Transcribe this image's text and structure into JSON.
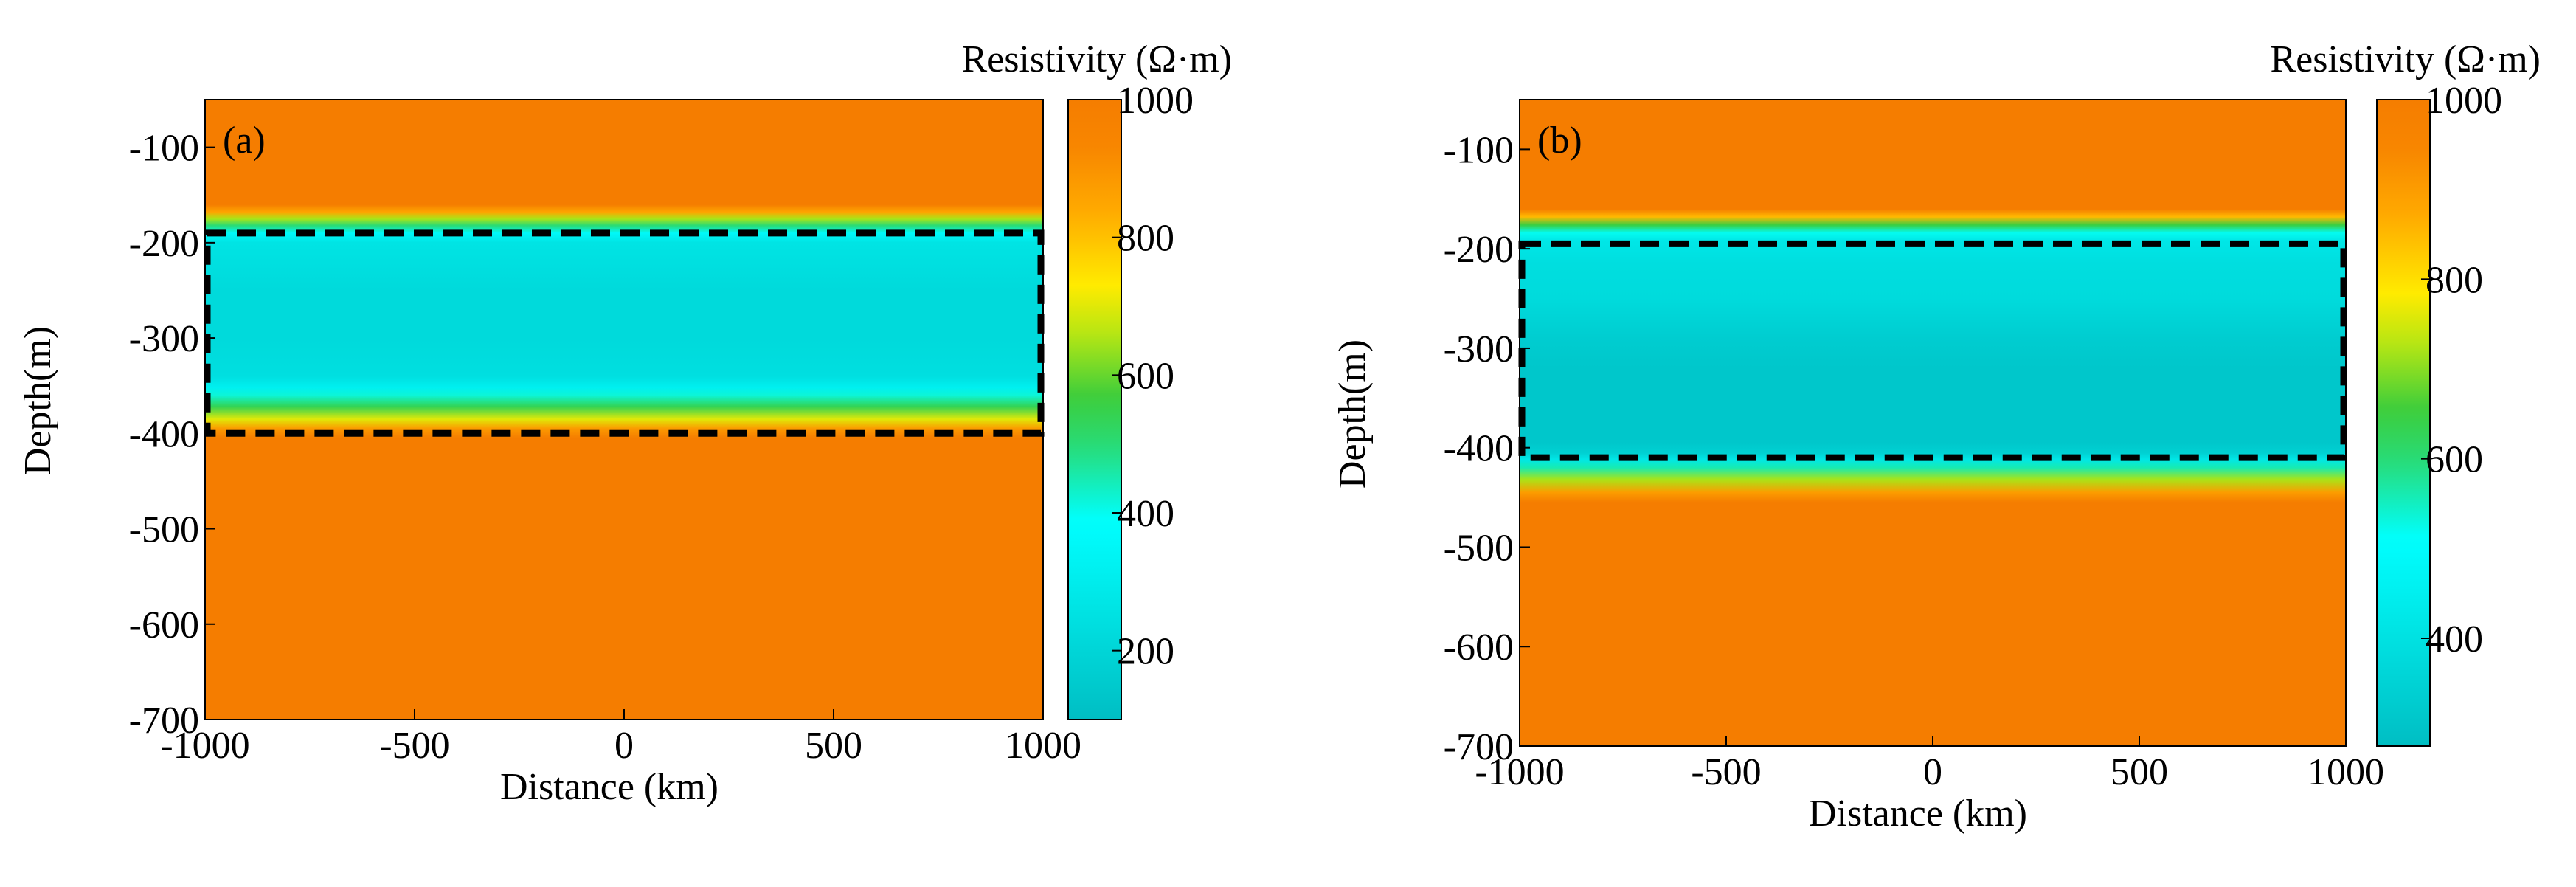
{
  "chart_data": [
    {
      "type": "heatmap",
      "panel_label": "(a)",
      "xlabel": "Distance (km)",
      "ylabel": "Depth(m)",
      "xlim": [
        -1000,
        1000
      ],
      "ylim": [
        -700,
        -50
      ],
      "x_ticks": [
        -1000,
        -500,
        0,
        500,
        1000
      ],
      "x_tick_labels": [
        "-1000",
        "-500",
        "0",
        "500",
        "1000"
      ],
      "y_ticks": [
        -100,
        -200,
        -300,
        -400,
        -500,
        -600,
        -700
      ],
      "y_tick_labels": [
        "-100",
        "-200",
        "-300",
        "-400",
        "-500",
        "-600",
        "-700"
      ],
      "colorbar": {
        "label": "Resistivity (Ω·m)",
        "range": [
          100,
          1000
        ],
        "ticks": [
          1000,
          800,
          600,
          400,
          200
        ],
        "tick_labels": [
          "1000",
          "800",
          "600",
          "400",
          "200"
        ]
      },
      "background_resistivity": 1000,
      "profile": [
        {
          "depth": -50,
          "value": 1000
        },
        {
          "depth": -160,
          "value": 1000
        },
        {
          "depth": -168,
          "value": 850
        },
        {
          "depth": -175,
          "value": 650
        },
        {
          "depth": -182,
          "value": 500
        },
        {
          "depth": -190,
          "value": 360
        },
        {
          "depth": -200,
          "value": 260
        },
        {
          "depth": -250,
          "value": 220
        },
        {
          "depth": -300,
          "value": 220
        },
        {
          "depth": -340,
          "value": 240
        },
        {
          "depth": -352,
          "value": 320
        },
        {
          "depth": -360,
          "value": 420
        },
        {
          "depth": -372,
          "value": 540
        },
        {
          "depth": -385,
          "value": 700
        },
        {
          "depth": -395,
          "value": 880
        },
        {
          "depth": -405,
          "value": 1000
        },
        {
          "depth": -700,
          "value": 1000
        }
      ],
      "box": {
        "x": [
          -1000,
          1000
        ],
        "depth": [
          -190,
          -400
        ]
      }
    },
    {
      "type": "heatmap",
      "panel_label": "(b)",
      "xlabel": "Distance (km)",
      "ylabel": "Depth(m)",
      "xlim": [
        -1000,
        1000
      ],
      "ylim": [
        -700,
        -50
      ],
      "x_ticks": [
        -1000,
        -500,
        0,
        500,
        1000
      ],
      "x_tick_labels": [
        "-1000",
        "-500",
        "0",
        "500",
        "1000"
      ],
      "y_ticks": [
        -100,
        -200,
        -300,
        -400,
        -500,
        -600,
        -700
      ],
      "y_tick_labels": [
        "-100",
        "-200",
        "-300",
        "-400",
        "-500",
        "-600",
        "-700"
      ],
      "colorbar": {
        "label": "Resistivity (Ω·m)",
        "range": [
          280,
          1000
        ],
        "ticks": [
          1000,
          800,
          600,
          400
        ],
        "tick_labels": [
          "1000",
          "800",
          "600",
          "400"
        ]
      },
      "background_resistivity": 1000,
      "profile": [
        {
          "depth": -50,
          "value": 1000
        },
        {
          "depth": -160,
          "value": 1000
        },
        {
          "depth": -168,
          "value": 850
        },
        {
          "depth": -176,
          "value": 650
        },
        {
          "depth": -184,
          "value": 520
        },
        {
          "depth": -192,
          "value": 420
        },
        {
          "depth": -215,
          "value": 390
        },
        {
          "depth": -250,
          "value": 380
        },
        {
          "depth": -290,
          "value": 330
        },
        {
          "depth": -320,
          "value": 310
        },
        {
          "depth": -395,
          "value": 310
        },
        {
          "depth": -405,
          "value": 340
        },
        {
          "depth": -412,
          "value": 420
        },
        {
          "depth": -420,
          "value": 560
        },
        {
          "depth": -432,
          "value": 720
        },
        {
          "depth": -445,
          "value": 900
        },
        {
          "depth": -455,
          "value": 1000
        },
        {
          "depth": -700,
          "value": 1000
        }
      ],
      "box": {
        "x": [
          -1000,
          1000
        ],
        "depth": [
          -195,
          -410
        ]
      }
    }
  ]
}
